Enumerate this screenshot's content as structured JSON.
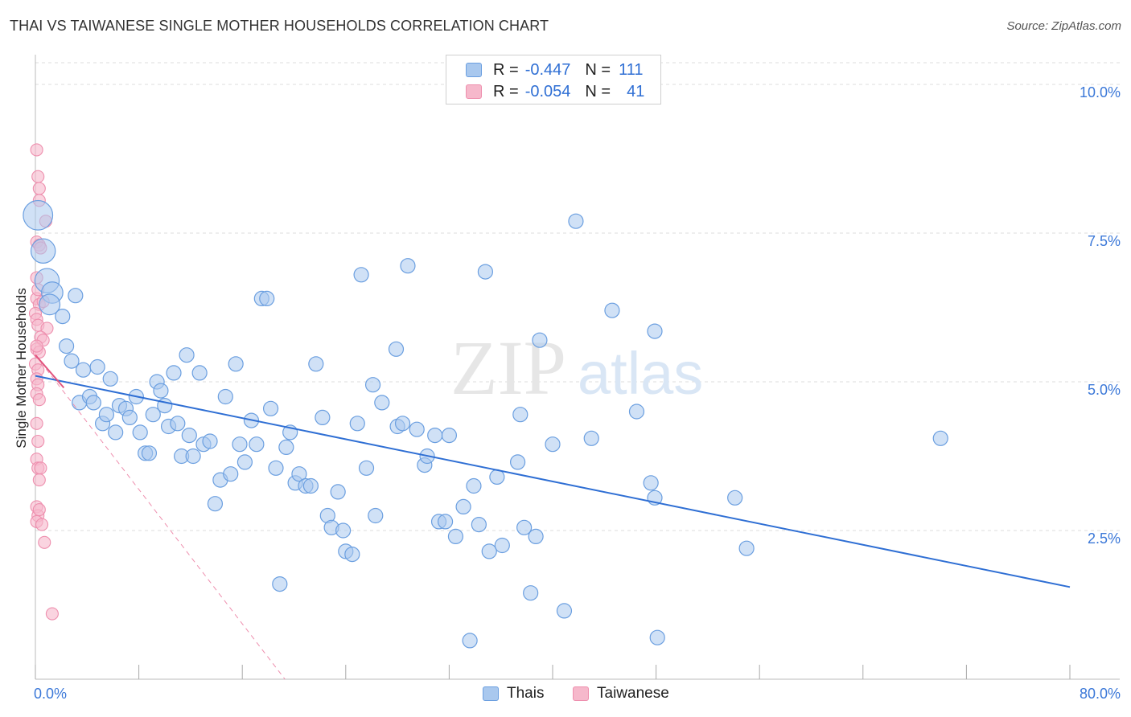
{
  "header": {
    "title": "THAI VS TAIWANESE SINGLE MOTHER HOUSEHOLDS CORRELATION CHART",
    "source": "Source: ZipAtlas.com"
  },
  "watermark": {
    "zip": "ZIP",
    "atlas": "atlas"
  },
  "legend": {
    "rows": [
      {
        "r_label": "R =",
        "r_value": "-0.447",
        "n_label": "N =",
        "n_value": "111"
      },
      {
        "r_label": "R =",
        "r_value": "-0.054",
        "n_label": "N =",
        "n_value": "41"
      }
    ]
  },
  "colors": {
    "thais_fill": "#a9c8ee",
    "thais_stroke": "#6b9fe0",
    "thais_line": "#2f6fd4",
    "taiwanese_fill": "#f6b8cb",
    "taiwanese_stroke": "#ee8fae",
    "taiwanese_line": "#e2557f",
    "grid": "#dddddd",
    "tick_text": "#3b78d8"
  },
  "chart_data": {
    "type": "scatter",
    "title": "THAI VS TAIWANESE SINGLE MOTHER HOUSEHOLDS CORRELATION CHART",
    "xlabel": "",
    "ylabel": "Single Mother Households",
    "xlim": [
      0,
      80
    ],
    "ylim": [
      0,
      10.5
    ],
    "x_tick_labels": [
      "0.0%",
      "80.0%"
    ],
    "y_ticks": [
      2.5,
      5.0,
      7.5,
      10.0
    ],
    "y_tick_labels": [
      "2.5%",
      "5.0%",
      "7.5%",
      "10.0%"
    ],
    "legend_position": "top-center",
    "series": [
      {
        "name": "Thais",
        "R": -0.447,
        "N": 111,
        "trend": {
          "x": [
            0,
            80
          ],
          "y": [
            5.1,
            1.55
          ]
        },
        "points": [
          [
            0.2,
            7.8,
            3
          ],
          [
            0.6,
            7.2,
            2
          ],
          [
            0.9,
            6.7,
            2
          ],
          [
            1.3,
            6.5,
            1.5
          ],
          [
            1.1,
            6.3,
            1.4
          ],
          [
            2.1,
            6.1,
            1
          ],
          [
            3.1,
            6.45,
            1
          ],
          [
            2.4,
            5.6,
            1
          ],
          [
            2.8,
            5.35,
            1
          ],
          [
            3.7,
            5.2,
            1
          ],
          [
            4.8,
            5.25,
            1
          ],
          [
            5.8,
            5.05,
            1
          ],
          [
            3.4,
            4.65,
            1
          ],
          [
            4.2,
            4.75,
            1
          ],
          [
            4.5,
            4.65,
            1
          ],
          [
            5.2,
            4.3,
            1
          ],
          [
            5.5,
            4.45,
            1
          ],
          [
            6.2,
            4.15,
            1
          ],
          [
            6.5,
            4.6,
            1
          ],
          [
            7.0,
            4.55,
            1
          ],
          [
            7.3,
            4.4,
            1
          ],
          [
            7.8,
            4.75,
            1
          ],
          [
            8.1,
            4.15,
            1
          ],
          [
            8.5,
            3.8,
            1
          ],
          [
            8.8,
            3.8,
            1
          ],
          [
            9.1,
            4.45,
            1
          ],
          [
            9.4,
            5.0,
            1
          ],
          [
            9.7,
            4.85,
            1
          ],
          [
            10.0,
            4.6,
            1
          ],
          [
            10.3,
            4.25,
            1
          ],
          [
            10.7,
            5.15,
            1
          ],
          [
            11.0,
            4.3,
            1
          ],
          [
            11.3,
            3.75,
            1
          ],
          [
            11.7,
            5.45,
            1
          ],
          [
            11.9,
            4.1,
            1
          ],
          [
            12.2,
            3.75,
            1
          ],
          [
            12.7,
            5.15,
            1
          ],
          [
            13.0,
            3.95,
            1
          ],
          [
            13.5,
            4.0,
            1
          ],
          [
            13.9,
            2.95,
            1
          ],
          [
            14.3,
            3.35,
            1
          ],
          [
            14.7,
            4.75,
            1
          ],
          [
            15.1,
            3.45,
            1
          ],
          [
            15.5,
            5.3,
            1
          ],
          [
            15.8,
            3.95,
            1
          ],
          [
            16.2,
            3.65,
            1
          ],
          [
            16.7,
            4.35,
            1
          ],
          [
            17.1,
            3.95,
            1
          ],
          [
            17.5,
            6.4,
            1
          ],
          [
            17.9,
            6.4,
            1
          ],
          [
            18.2,
            4.55,
            1
          ],
          [
            18.6,
            3.55,
            1
          ],
          [
            18.9,
            1.6,
            1
          ],
          [
            19.4,
            3.9,
            1
          ],
          [
            19.7,
            4.15,
            1
          ],
          [
            20.1,
            3.3,
            1
          ],
          [
            20.4,
            3.45,
            1
          ],
          [
            20.9,
            3.25,
            1
          ],
          [
            21.3,
            3.25,
            1
          ],
          [
            21.7,
            5.3,
            1
          ],
          [
            22.2,
            4.4,
            1
          ],
          [
            22.6,
            2.75,
            1
          ],
          [
            22.9,
            2.55,
            1
          ],
          [
            23.4,
            3.15,
            1
          ],
          [
            23.8,
            2.5,
            1
          ],
          [
            24.0,
            2.15,
            1
          ],
          [
            24.5,
            2.1,
            1
          ],
          [
            24.9,
            4.3,
            1
          ],
          [
            25.2,
            6.8,
            1
          ],
          [
            25.6,
            3.55,
            1
          ],
          [
            26.1,
            4.95,
            1
          ],
          [
            26.3,
            2.75,
            1
          ],
          [
            26.8,
            4.65,
            1
          ],
          [
            27.9,
            5.55,
            1
          ],
          [
            28.0,
            4.25,
            1
          ],
          [
            28.4,
            4.3,
            1
          ],
          [
            28.8,
            6.95,
            1
          ],
          [
            29.5,
            4.2,
            1
          ],
          [
            30.1,
            3.6,
            1
          ],
          [
            30.3,
            3.75,
            1
          ],
          [
            30.9,
            4.1,
            1
          ],
          [
            31.2,
            2.65,
            1
          ],
          [
            31.7,
            2.65,
            1
          ],
          [
            32.0,
            4.1,
            1
          ],
          [
            32.5,
            2.4,
            1
          ],
          [
            33.1,
            2.9,
            1
          ],
          [
            33.6,
            0.65,
            1
          ],
          [
            33.9,
            3.25,
            1
          ],
          [
            34.3,
            2.6,
            1
          ],
          [
            34.8,
            6.85,
            1
          ],
          [
            35.1,
            2.15,
            1
          ],
          [
            35.7,
            3.4,
            1
          ],
          [
            36.1,
            2.25,
            1
          ],
          [
            37.3,
            3.65,
            1
          ],
          [
            37.5,
            4.45,
            1
          ],
          [
            37.8,
            2.55,
            1
          ],
          [
            38.3,
            1.45,
            1
          ],
          [
            38.7,
            2.4,
            1
          ],
          [
            39.0,
            5.7,
            1
          ],
          [
            40.0,
            3.95,
            1
          ],
          [
            40.9,
            1.15,
            1
          ],
          [
            41.8,
            7.7,
            1
          ],
          [
            43.0,
            4.05,
            1
          ],
          [
            44.6,
            6.2,
            1
          ],
          [
            46.5,
            4.5,
            1
          ],
          [
            47.6,
            3.3,
            1
          ],
          [
            47.9,
            3.05,
            1
          ],
          [
            47.9,
            5.85,
            1
          ],
          [
            48.1,
            0.7,
            1
          ],
          [
            54.1,
            3.05,
            1
          ],
          [
            55.0,
            2.2,
            1
          ],
          [
            70.0,
            4.05,
            1
          ]
        ]
      },
      {
        "name": "Taiwanese",
        "R": -0.054,
        "N": 41,
        "trend": {
          "x": [
            0,
            2.2
          ],
          "y": [
            5.45,
            4.9
          ]
        },
        "trend_extended": {
          "x": [
            0,
            19.3
          ],
          "y": [
            5.45,
            0
          ]
        },
        "points": [
          [
            0.1,
            8.9,
            1
          ],
          [
            0.2,
            8.45,
            1
          ],
          [
            0.3,
            8.25,
            1
          ],
          [
            0.3,
            8.05,
            1
          ],
          [
            0.8,
            7.7,
            1
          ],
          [
            0.1,
            7.35,
            1
          ],
          [
            0.3,
            7.3,
            1
          ],
          [
            0.4,
            7.25,
            1
          ],
          [
            0.1,
            6.75,
            1
          ],
          [
            0.1,
            6.4,
            1
          ],
          [
            0.3,
            6.3,
            1
          ],
          [
            0.0,
            6.15,
            1
          ],
          [
            0.1,
            6.05,
            1
          ],
          [
            0.2,
            5.95,
            1
          ],
          [
            0.9,
            5.9,
            1
          ],
          [
            0.4,
            5.75,
            1
          ],
          [
            0.6,
            5.7,
            1
          ],
          [
            0.1,
            5.55,
            1
          ],
          [
            0.3,
            5.5,
            1
          ],
          [
            0.0,
            5.3,
            1
          ],
          [
            0.2,
            5.2,
            1
          ],
          [
            0.1,
            5.05,
            1
          ],
          [
            0.2,
            4.95,
            1
          ],
          [
            0.1,
            4.8,
            1
          ],
          [
            0.3,
            4.7,
            1
          ],
          [
            0.1,
            4.3,
            1
          ],
          [
            0.2,
            4.0,
            1
          ],
          [
            0.1,
            3.7,
            1
          ],
          [
            0.2,
            3.55,
            1
          ],
          [
            0.4,
            3.55,
            1
          ],
          [
            0.3,
            3.35,
            1
          ],
          [
            0.1,
            2.9,
            1
          ],
          [
            0.2,
            2.75,
            1
          ],
          [
            0.3,
            2.85,
            1
          ],
          [
            0.1,
            2.65,
            1
          ],
          [
            0.5,
            2.6,
            1
          ],
          [
            0.7,
            2.3,
            1
          ],
          [
            1.3,
            1.1,
            1
          ],
          [
            0.2,
            6.55,
            1
          ],
          [
            0.6,
            6.35,
            1
          ],
          [
            0.1,
            5.6,
            1
          ]
        ]
      }
    ]
  },
  "bottom_legend": [
    {
      "label": "Thais"
    },
    {
      "label": "Taiwanese"
    }
  ]
}
